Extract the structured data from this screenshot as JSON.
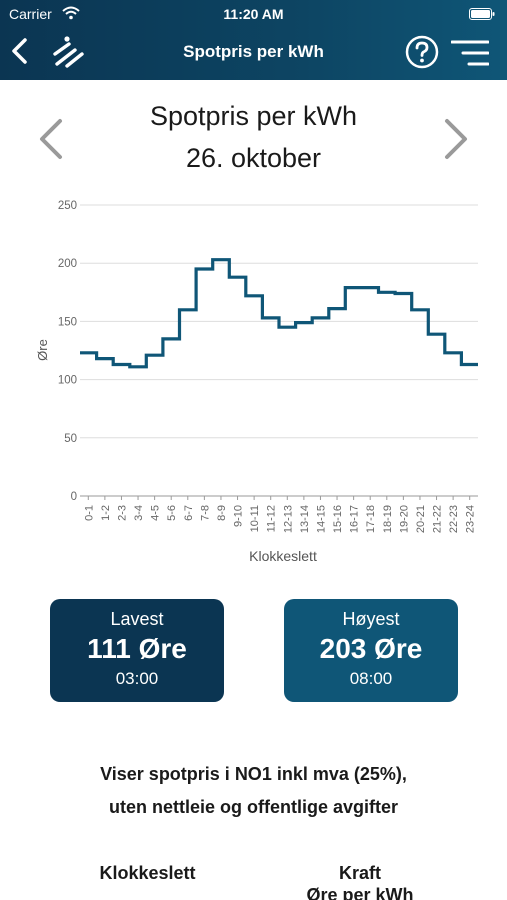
{
  "status_bar": {
    "carrier": "Carrier",
    "time": "11:20 AM"
  },
  "header": {
    "title": "Spotpris per kWh"
  },
  "page": {
    "title": "Spotpris per kWh",
    "date": "26. oktober"
  },
  "chart_data": {
    "type": "line",
    "step": true,
    "title": "",
    "xlabel": "Klokkeslett",
    "ylabel": "Øre",
    "ylim": [
      0,
      250
    ],
    "yticks": [
      0,
      50,
      100,
      150,
      200,
      250
    ],
    "grid": true,
    "line_color": "#0f5677",
    "categories": [
      "0-1",
      "1-2",
      "2-3",
      "3-4",
      "4-5",
      "5-6",
      "6-7",
      "7-8",
      "8-9",
      "9-10",
      "10-11",
      "11-12",
      "12-13",
      "13-14",
      "14-15",
      "15-16",
      "16-17",
      "17-18",
      "18-19",
      "19-20",
      "20-21",
      "21-22",
      "22-23",
      "23-24"
    ],
    "values": [
      123,
      118,
      113,
      111,
      121,
      135,
      160,
      195,
      203,
      188,
      172,
      153,
      145,
      149,
      153,
      161,
      179,
      179,
      175,
      174,
      160,
      139,
      123,
      113
    ]
  },
  "stats": {
    "low": {
      "label": "Lavest",
      "value": "111 Øre",
      "time": "03:00"
    },
    "high": {
      "label": "Høyest",
      "value": "203 Øre",
      "time": "08:00"
    }
  },
  "info": {
    "line1": "Viser spotpris i NO1 inkl mva (25%),",
    "line2": "uten nettleie og offentlige avgifter"
  },
  "table": {
    "col_time": "Klokkeslett",
    "col_power_line1": "Kraft",
    "col_power_line2": "Øre per kWh"
  },
  "colors": {
    "header_dark": "#0b3552",
    "header_light": "#0f5677",
    "line": "#0f5677"
  },
  "icons": [
    "wifi-icon",
    "battery-icon",
    "back-icon",
    "logo-icon",
    "help-icon",
    "menu-icon",
    "chevron-left-icon",
    "chevron-right-icon"
  ]
}
